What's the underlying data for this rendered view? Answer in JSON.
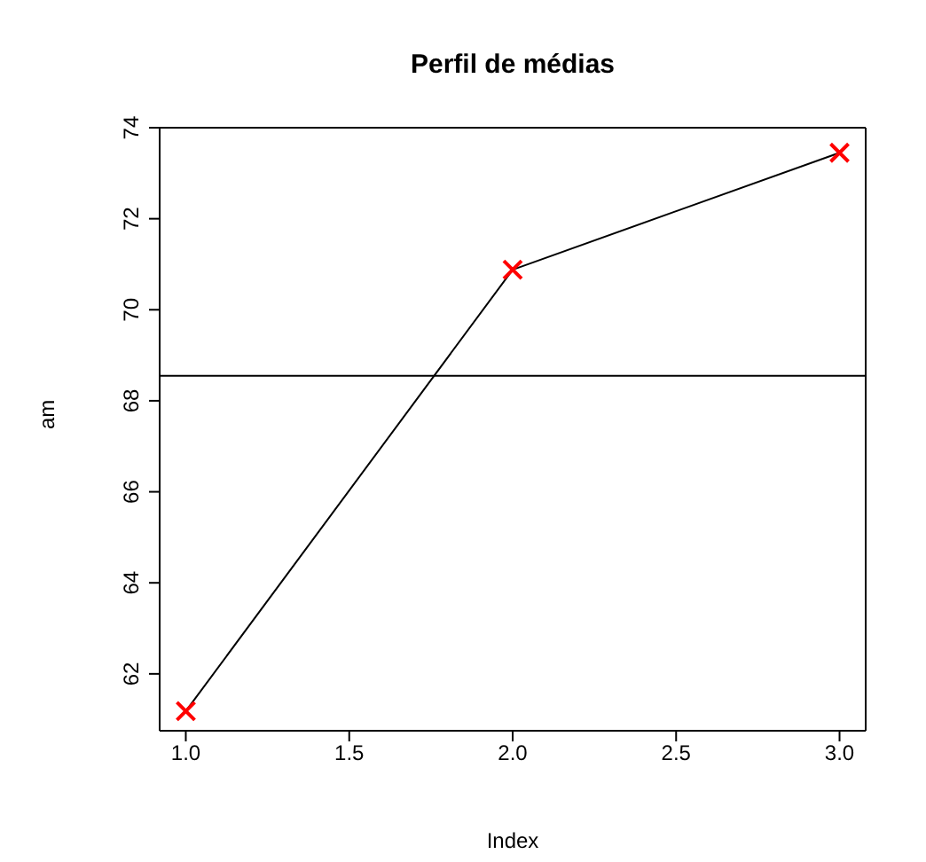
{
  "chart_data": {
    "type": "line",
    "title": "Perfil de médias",
    "xlabel": "Index",
    "ylabel": "am",
    "x": [
      1,
      2,
      3
    ],
    "series": [
      {
        "color": "#000000",
        "values": [
          61.18,
          70.88,
          73.45
        ],
        "marker": "none"
      },
      {
        "type": "scatter",
        "color": "#ff0000",
        "values": [
          61.18,
          70.88,
          73.45
        ],
        "marker": "cross"
      }
    ],
    "grid": false,
    "legend": false,
    "xlim": [
      0.92,
      3.08
    ],
    "xticks": [
      {
        "value": 1,
        "label": "1.0"
      },
      {
        "value": 1.5,
        "label": "1.5"
      },
      {
        "value": 2,
        "label": "2.0"
      },
      {
        "value": 2.5,
        "label": "2.5"
      },
      {
        "value": 3,
        "label": "3.0"
      }
    ],
    "ylim": [
      60.75,
      74.0
    ],
    "yticks": [
      62,
      64,
      66,
      68,
      70,
      72,
      74
    ],
    "ref_lines": [
      {
        "axis": "y",
        "value": 68.55,
        "color": "#000000"
      }
    ]
  }
}
